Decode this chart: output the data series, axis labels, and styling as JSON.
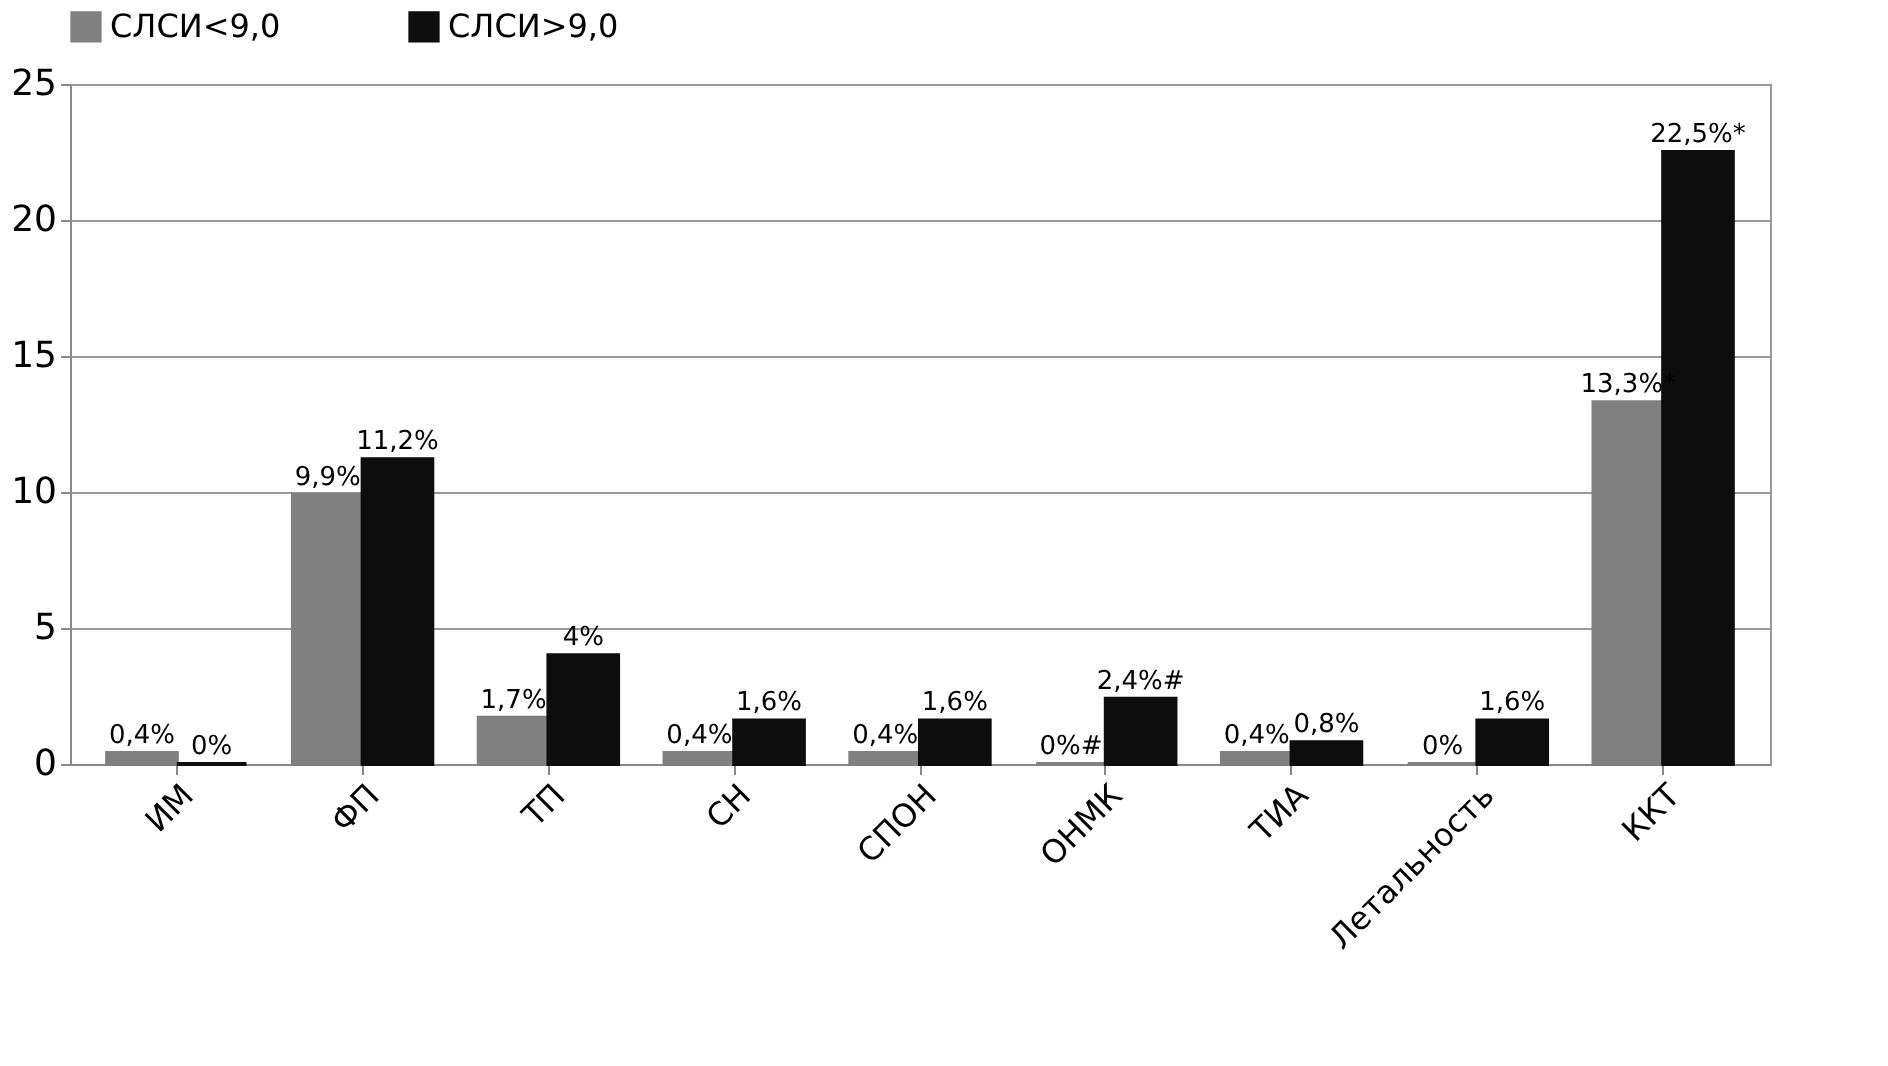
{
  "chart_data": {
    "type": "bar",
    "categories": [
      "ИМ",
      "ФП",
      "ТП",
      "СН",
      "СПОН",
      "ОНМК",
      "ТИА",
      "Летальность",
      "ККТ"
    ],
    "series": [
      {
        "name": "СЛСИ<9,0",
        "color": "#808080",
        "values": [
          0.4,
          9.9,
          1.7,
          0.4,
          0.4,
          0,
          0.4,
          0,
          13.3
        ],
        "value_labels": [
          "0,4%",
          "9,9%",
          "1,7%",
          "0,4%",
          "0,4%",
          "0%#",
          "0,4%",
          "0%",
          "13,3%*"
        ]
      },
      {
        "name": "СЛСИ>9,0",
        "color": "#0d0d0d",
        "values": [
          0,
          11.2,
          4,
          1.6,
          1.6,
          2.4,
          0.8,
          1.6,
          22.5
        ],
        "value_labels": [
          "0%",
          "11,2%",
          "4%",
          "1,6%",
          "1,6%",
          "2,4%#",
          "0,8%",
          "1,6%",
          "22,5%*"
        ]
      }
    ],
    "ylim": [
      0,
      25
    ],
    "yticks": [
      0,
      5,
      10,
      15,
      20,
      25
    ],
    "grid": "y",
    "legend": "top"
  }
}
